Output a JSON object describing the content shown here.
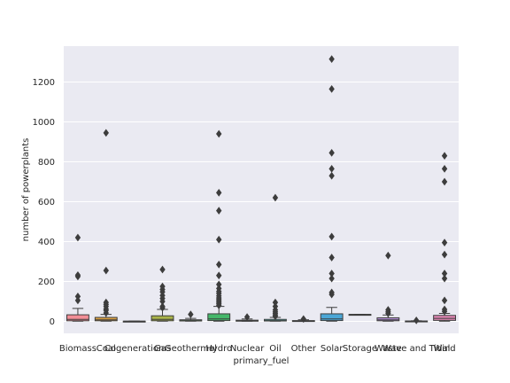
{
  "chart_data": {
    "type": "boxplot",
    "title": "",
    "xlabel": "primary_fuel",
    "ylabel": "number of powerplants",
    "ylim": [
      -60,
      1380
    ],
    "yticks": [
      0,
      200,
      400,
      600,
      800,
      1000,
      1200
    ],
    "grid": true,
    "categories": [
      "Biomass",
      "Coal",
      "Cogeneration",
      "Gas",
      "Geothermal",
      "Hydro",
      "Nuclear",
      "Oil",
      "Other",
      "Solar",
      "Storage",
      "Waste",
      "Wave and Tidal",
      "Wind"
    ],
    "boxes": [
      {
        "category": "Biomass",
        "color": "#f28e97",
        "min": 1,
        "q1": 3,
        "median": 10,
        "q3": 33,
        "max": 65,
        "outliers": [
          105,
          125,
          225,
          232,
          420
        ]
      },
      {
        "category": "Coal",
        "color": "#d89f43",
        "min": 1,
        "q1": 3,
        "median": 8,
        "q3": 20,
        "max": 35,
        "outliers": [
          42,
          55,
          62,
          75,
          85,
          95,
          255,
          945
        ]
      },
      {
        "category": "Cogeneration",
        "color": "#b7ac4d",
        "min": 1,
        "q1": 1,
        "median": 1,
        "q1b": 1,
        "q3": 1,
        "max": 1,
        "outliers": []
      },
      {
        "category": "Gas",
        "color": "#a9b34a",
        "min": 1,
        "q1": 3,
        "median": 10,
        "q3": 28,
        "max": 60,
        "outliers": [
          68,
          75,
          100,
          115,
          130,
          148,
          160,
          175,
          260
        ]
      },
      {
        "category": "Geothermal",
        "color": "#57b24d",
        "min": 1,
        "q1": 2,
        "median": 4,
        "q3": 8,
        "max": 15,
        "outliers": [
          35
        ]
      },
      {
        "category": "Hydro",
        "color": "#45b76a",
        "min": 1,
        "q1": 4,
        "median": 12,
        "q3": 38,
        "max": 75,
        "outliers": [
          80,
          88,
          95,
          102,
          110,
          118,
          128,
          140,
          150,
          165,
          185,
          230,
          285,
          410,
          555,
          645,
          940
        ]
      },
      {
        "category": "Nuclear",
        "color": "#47b39a",
        "min": 1,
        "q1": 1,
        "median": 3,
        "q3": 6,
        "max": 12,
        "outliers": [
          22
        ]
      },
      {
        "category": "Oil",
        "color": "#49b4b0",
        "min": 1,
        "q1": 2,
        "median": 4,
        "q3": 10,
        "max": 20,
        "outliers": [
          25,
          32,
          40,
          48,
          58,
          75,
          95,
          620
        ]
      },
      {
        "category": "Other",
        "color": "#4bb3c3",
        "min": 1,
        "q1": 1,
        "median": 2,
        "q3": 4,
        "max": 8,
        "outliers": [
          12
        ]
      },
      {
        "category": "Solar",
        "color": "#4ba6d6",
        "min": 1,
        "q1": 4,
        "median": 12,
        "q3": 38,
        "max": 70,
        "outliers": [
          135,
          145,
          215,
          240,
          320,
          425,
          730,
          765,
          845,
          1165,
          1315
        ]
      },
      {
        "category": "Storage",
        "color": "#9ea4e0",
        "min": 35,
        "q1": 35,
        "median": 35,
        "q3": 35,
        "max": 35,
        "outliers": []
      },
      {
        "category": "Waste",
        "color": "#b48fd6",
        "min": 1,
        "q1": 3,
        "median": 8,
        "q3": 18,
        "max": 32,
        "outliers": [
          40,
          48,
          58,
          330
        ]
      },
      {
        "category": "Wave and Tidal",
        "color": "#d58bcf",
        "min": 1,
        "q1": 1,
        "median": 1,
        "q3": 2,
        "max": 3,
        "outliers": [
          5
        ]
      },
      {
        "category": "Wind",
        "color": "#df86b3",
        "min": 1,
        "q1": 5,
        "median": 15,
        "q3": 30,
        "max": 40,
        "outliers": [
          50,
          60,
          105,
          215,
          240,
          335,
          395,
          700,
          765,
          830
        ]
      }
    ]
  }
}
